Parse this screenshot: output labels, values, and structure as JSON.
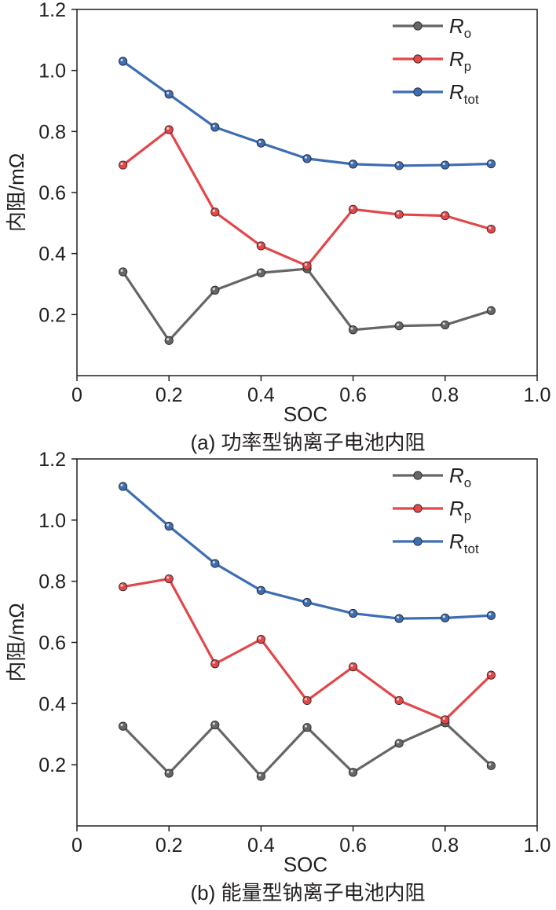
{
  "chart_data": [
    {
      "type": "line",
      "caption": "(a) 功率型钠离子电池内阻",
      "xlabel": "SOC",
      "ylabel": "内阻/mΩ",
      "xlim": [
        0,
        1.0
      ],
      "ylim": [
        0,
        1.2
      ],
      "xticks": [
        "0",
        "0.2",
        "0.4",
        "0.6",
        "0.8",
        "1.0"
      ],
      "yticks": [
        "0.2",
        "0.4",
        "0.6",
        "0.8",
        "1.0",
        "1.2"
      ],
      "x": [
        0.1,
        0.2,
        0.3,
        0.4,
        0.5,
        0.6,
        0.7,
        0.8,
        0.9
      ],
      "legend_position": "top-right",
      "series": [
        {
          "name": "Ro",
          "letter": "R",
          "sub": "o",
          "color": "#666666",
          "values": [
            0.34,
            0.115,
            0.28,
            0.337,
            0.35,
            0.15,
            0.163,
            0.166,
            0.213
          ]
        },
        {
          "name": "Rp",
          "letter": "R",
          "sub": "p",
          "color": "#e2474a",
          "values": [
            0.69,
            0.806,
            0.536,
            0.425,
            0.36,
            0.545,
            0.528,
            0.524,
            0.48
          ]
        },
        {
          "name": "Rtot",
          "letter": "R",
          "sub": "tot",
          "color": "#3d6db3",
          "values": [
            1.03,
            0.922,
            0.814,
            0.762,
            0.711,
            0.693,
            0.688,
            0.69,
            0.694
          ]
        }
      ]
    },
    {
      "type": "line",
      "caption": "(b) 能量型钠离子电池内阻",
      "xlabel": "SOC",
      "ylabel": "内阻/mΩ",
      "xlim": [
        0,
        1.0
      ],
      "ylim": [
        0,
        1.2
      ],
      "xticks": [
        "0",
        "0.2",
        "0.4",
        "0.6",
        "0.8",
        "1.0"
      ],
      "yticks": [
        "0.2",
        "0.4",
        "0.6",
        "0.8",
        "1.0",
        "1.2"
      ],
      "x": [
        0.1,
        0.2,
        0.3,
        0.4,
        0.5,
        0.6,
        0.7,
        0.8,
        0.9
      ],
      "legend_position": "top-right",
      "series": [
        {
          "name": "Ro",
          "letter": "R",
          "sub": "o",
          "color": "#666666",
          "values": [
            0.326,
            0.172,
            0.33,
            0.162,
            0.322,
            0.175,
            0.27,
            0.337,
            0.197
          ]
        },
        {
          "name": "Rp",
          "letter": "R",
          "sub": "p",
          "color": "#e2474a",
          "values": [
            0.782,
            0.808,
            0.53,
            0.61,
            0.41,
            0.52,
            0.41,
            0.347,
            0.493
          ]
        },
        {
          "name": "Rtot",
          "letter": "R",
          "sub": "tot",
          "color": "#3d6db3",
          "values": [
            1.11,
            0.98,
            0.858,
            0.77,
            0.731,
            0.695,
            0.678,
            0.68,
            0.688
          ]
        }
      ]
    }
  ]
}
